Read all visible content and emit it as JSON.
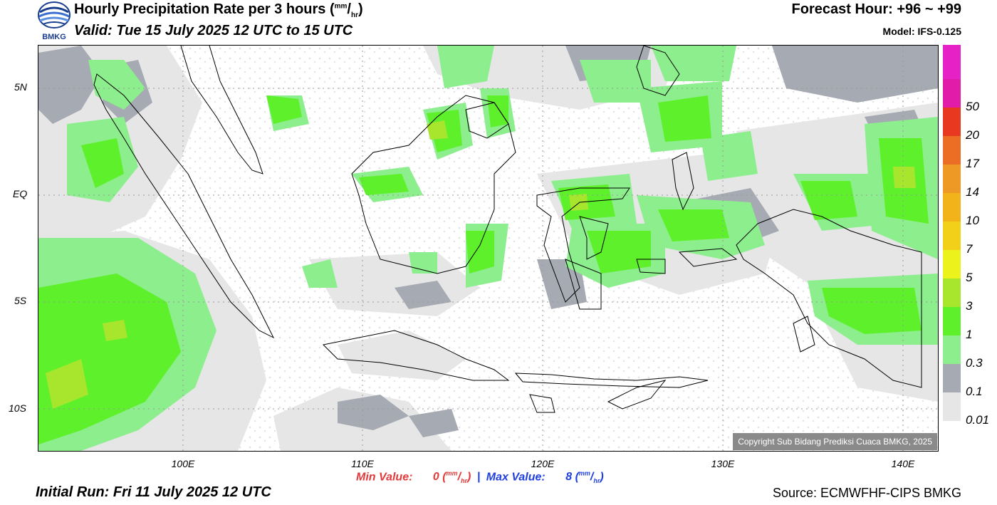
{
  "header": {
    "title_main": "Hourly Precipitation Rate per 3 hours (",
    "unit_num": "mm",
    "unit_slash": "/",
    "unit_den": "hr",
    "title_close": ")",
    "valid": "Valid: Tue 15 July 2025 12 UTC to 15 UTC",
    "forecast_hour": "Forecast Hour: +96 ~ +99",
    "model": "Model: IFS-0.125",
    "logo_text": "BMKG"
  },
  "map": {
    "lat_labels": [
      {
        "label": "5N",
        "lat": 5
      },
      {
        "label": "EQ",
        "lat": 0
      },
      {
        "label": "5S",
        "lat": -5
      },
      {
        "label": "10S",
        "lat": -10
      }
    ],
    "lon_labels": [
      {
        "label": "100E",
        "lon": 100
      },
      {
        "label": "110E",
        "lon": 110
      },
      {
        "label": "120E",
        "lon": 120
      },
      {
        "label": "130E",
        "lon": 130
      },
      {
        "label": "140E",
        "lon": 140
      }
    ],
    "copyright": "Copyright Sub Bidang Prediksi Cuaca BMKG, 2025"
  },
  "legend": {
    "levels": [
      {
        "label": "0.01",
        "color": "#e6e6e6"
      },
      {
        "label": "0.1",
        "color": "#a6aab2"
      },
      {
        "label": "0.3",
        "color": "#8cee8c"
      },
      {
        "label": "1",
        "color": "#5ef02a"
      },
      {
        "label": "3",
        "color": "#a8e62e"
      },
      {
        "label": "5",
        "color": "#ecf21c"
      },
      {
        "label": "7",
        "color": "#f2d01a"
      },
      {
        "label": "10",
        "color": "#f2b21a"
      },
      {
        "label": "14",
        "color": "#ee9826"
      },
      {
        "label": "17",
        "color": "#ec6e24"
      },
      {
        "label": "20",
        "color": "#e83820"
      },
      {
        "label": "50",
        "color": "#e01ca8"
      }
    ],
    "top_color": "#e622c6"
  },
  "footer": {
    "min_label": "Min Value:",
    "min_value": "0",
    "max_label": "Max Value:",
    "max_value": "8",
    "unit_num": "mm",
    "unit_den": "hr",
    "initial_run": "Initial Run: Fri 11 July 2025 12 UTC",
    "source": "Source: ECMWFHF-CIPS BMKG"
  }
}
